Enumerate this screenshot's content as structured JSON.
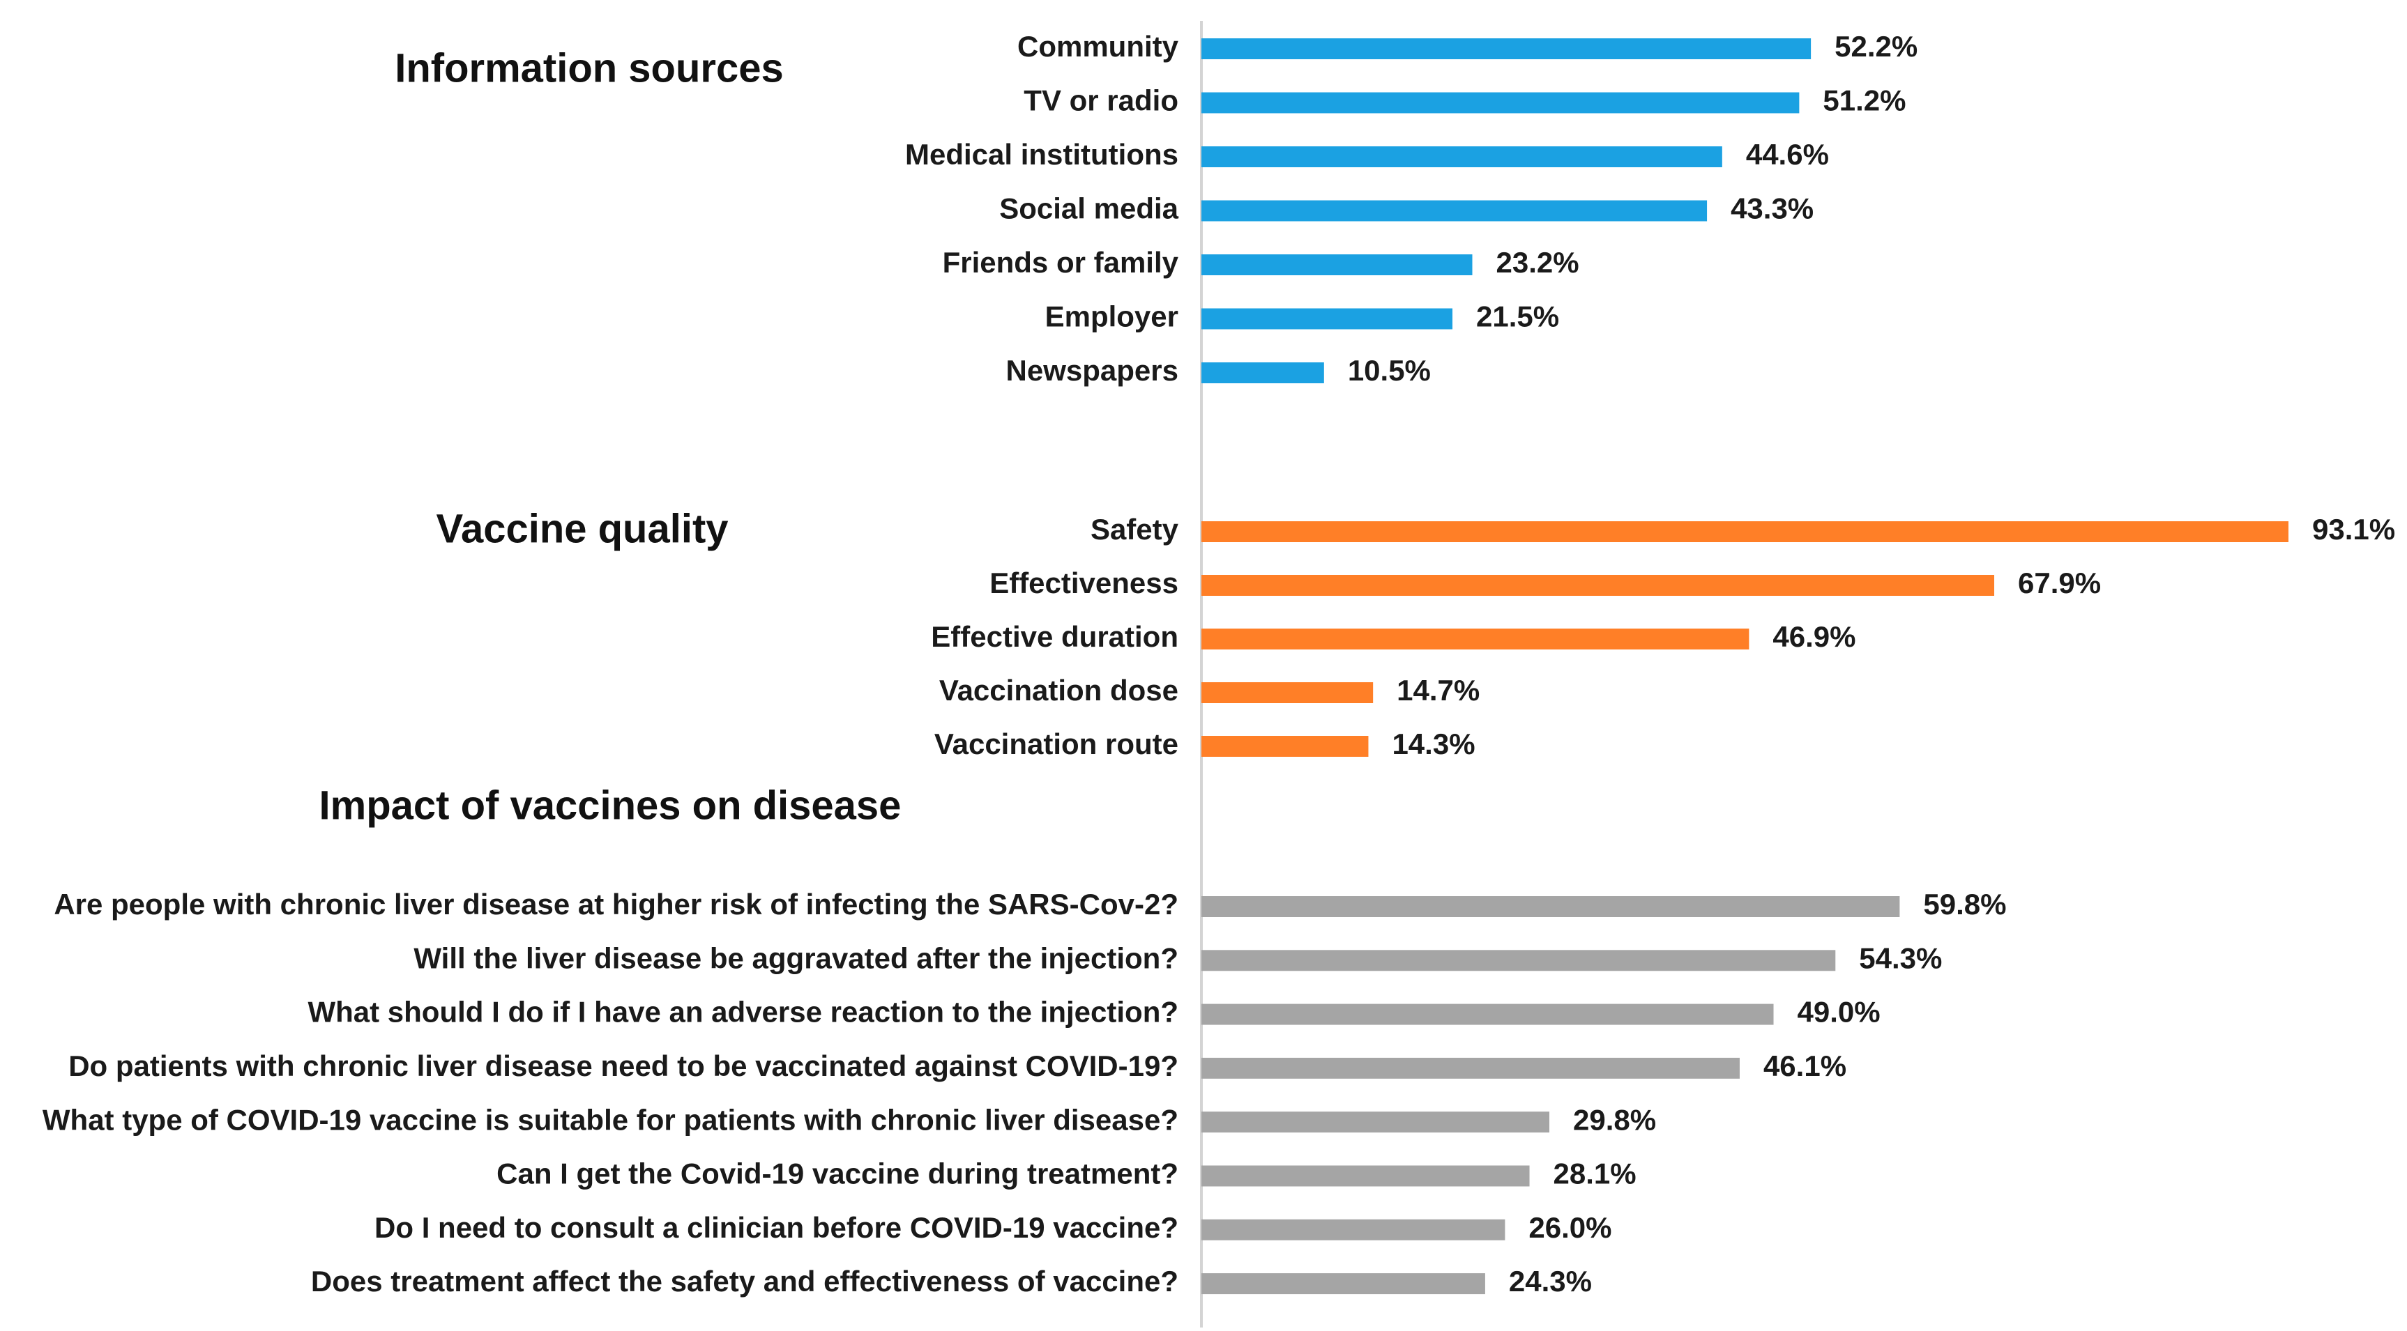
{
  "chart_data": {
    "type": "bar",
    "orientation": "horizontal",
    "value_unit": "%",
    "xlim": [
      0,
      100
    ],
    "gridlines": false,
    "legend": "none",
    "sections": [
      {
        "title": "Information sources",
        "color": "#1BA1E2",
        "categories": [
          "Community",
          "TV or radio",
          "Medical institutions",
          "Social media",
          "Friends or family",
          "Employer",
          "Newspapers"
        ],
        "values": [
          52.2,
          51.2,
          44.6,
          43.3,
          23.2,
          21.5,
          10.5
        ],
        "value_labels": [
          "52.2%",
          "51.2%",
          "44.6%",
          "43.3%",
          "23.2%",
          "21.5%",
          "10.5%"
        ]
      },
      {
        "title": "Vaccine quality",
        "color": "#FF7F27",
        "categories": [
          "Safety",
          "Effectiveness",
          "Effective duration",
          "Vaccination dose",
          "Vaccination route"
        ],
        "values": [
          93.1,
          67.9,
          46.9,
          14.7,
          14.3
        ],
        "value_labels": [
          "93.1%",
          "67.9%",
          "46.9%",
          "14.7%",
          "14.3%"
        ]
      },
      {
        "title": "Impact of vaccines on disease",
        "color": "#A5A5A5",
        "categories": [
          "Are people with chronic liver disease at higher risk of infecting the SARS-Cov-2?",
          "Will the liver disease be aggravated after the injection?",
          "What should I do if I have an adverse reaction to the injection?",
          "Do patients with chronic liver disease need to be vaccinated against COVID-19?",
          "What type of COVID-19 vaccine is suitable for patients with chronic liver disease?",
          "Can I get the Covid-19 vaccine during treatment?",
          "Do I need to consult a clinician before COVID-19 vaccine?",
          "Does treatment affect the safety and effectiveness of vaccine?"
        ],
        "values": [
          59.8,
          54.3,
          49.0,
          46.1,
          29.8,
          28.1,
          26.0,
          24.3
        ],
        "value_labels": [
          "59.8%",
          "54.3%",
          "49.0%",
          "46.1%",
          "29.8%",
          "28.1%",
          "26.0%",
          "24.3%"
        ]
      }
    ]
  }
}
